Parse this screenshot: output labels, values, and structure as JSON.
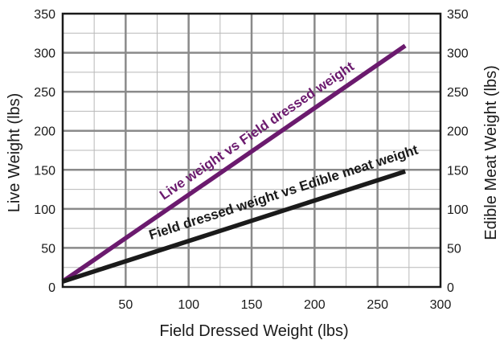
{
  "chart_data": {
    "type": "line",
    "xlabel": "Field Dressed Weight (lbs)",
    "ylabel": "Live Weight (lbs)",
    "y2label": "Edible Meat Weight (lbs)",
    "xlim": [
      0,
      300
    ],
    "ylim": [
      0,
      350
    ],
    "y2lim": [
      0,
      350
    ],
    "x_ticks": [
      50,
      100,
      150,
      200,
      250,
      300
    ],
    "y_ticks": [
      0,
      50,
      100,
      150,
      200,
      250,
      300,
      350
    ],
    "y2_ticks": [
      0,
      50,
      100,
      150,
      200,
      250,
      300,
      350
    ],
    "grid": true,
    "series": [
      {
        "name": "Live weight vs Field dressed weight",
        "axis": "left",
        "color": "#6b1a6e",
        "x": [
          0,
          272
        ],
        "y": [
          7,
          309
        ]
      },
      {
        "name": "Field dressed weight vs Edible meat weight",
        "axis": "right",
        "color": "#1a1a1a",
        "x": [
          0,
          272
        ],
        "y": [
          7,
          148
        ]
      }
    ]
  }
}
